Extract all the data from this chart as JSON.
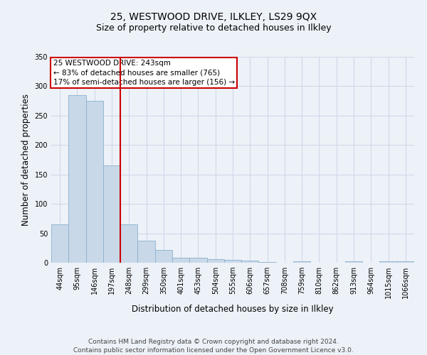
{
  "title": "25, WESTWOOD DRIVE, ILKLEY, LS29 9QX",
  "subtitle": "Size of property relative to detached houses in Ilkley",
  "xlabel": "Distribution of detached houses by size in Ilkley",
  "ylabel": "Number of detached properties",
  "footer_line1": "Contains HM Land Registry data © Crown copyright and database right 2024.",
  "footer_line2": "Contains public sector information licensed under the Open Government Licence v3.0.",
  "bar_labels": [
    "44sqm",
    "95sqm",
    "146sqm",
    "197sqm",
    "248sqm",
    "299sqm",
    "350sqm",
    "401sqm",
    "453sqm",
    "504sqm",
    "555sqm",
    "606sqm",
    "657sqm",
    "708sqm",
    "759sqm",
    "810sqm",
    "862sqm",
    "913sqm",
    "964sqm",
    "1015sqm",
    "1066sqm"
  ],
  "bar_values": [
    65,
    285,
    275,
    165,
    65,
    37,
    22,
    8,
    9,
    6,
    5,
    4,
    1,
    0,
    3,
    0,
    0,
    2,
    0,
    2,
    2
  ],
  "bar_color": "#c8d8e8",
  "bar_edge_color": "#8ab0cc",
  "grid_color": "#d0d8e8",
  "bg_color": "#edf2f8",
  "property_line_color": "#cc0000",
  "property_line_bin": 4,
  "annotation_title": "25 WESTWOOD DRIVE: 243sqm",
  "annotation_line1": "← 83% of detached houses are smaller (765)",
  "annotation_line2": "17% of semi-detached houses are larger (156) →",
  "annotation_box_color": "#ffffff",
  "annotation_box_edge": "#cc0000",
  "ylim": [
    0,
    350
  ],
  "yticks": [
    0,
    50,
    100,
    150,
    200,
    250,
    300,
    350
  ],
  "title_fontsize": 10,
  "subtitle_fontsize": 9,
  "axis_label_fontsize": 8.5,
  "tick_fontsize": 7,
  "footer_fontsize": 6.5,
  "annot_fontsize": 7.5
}
